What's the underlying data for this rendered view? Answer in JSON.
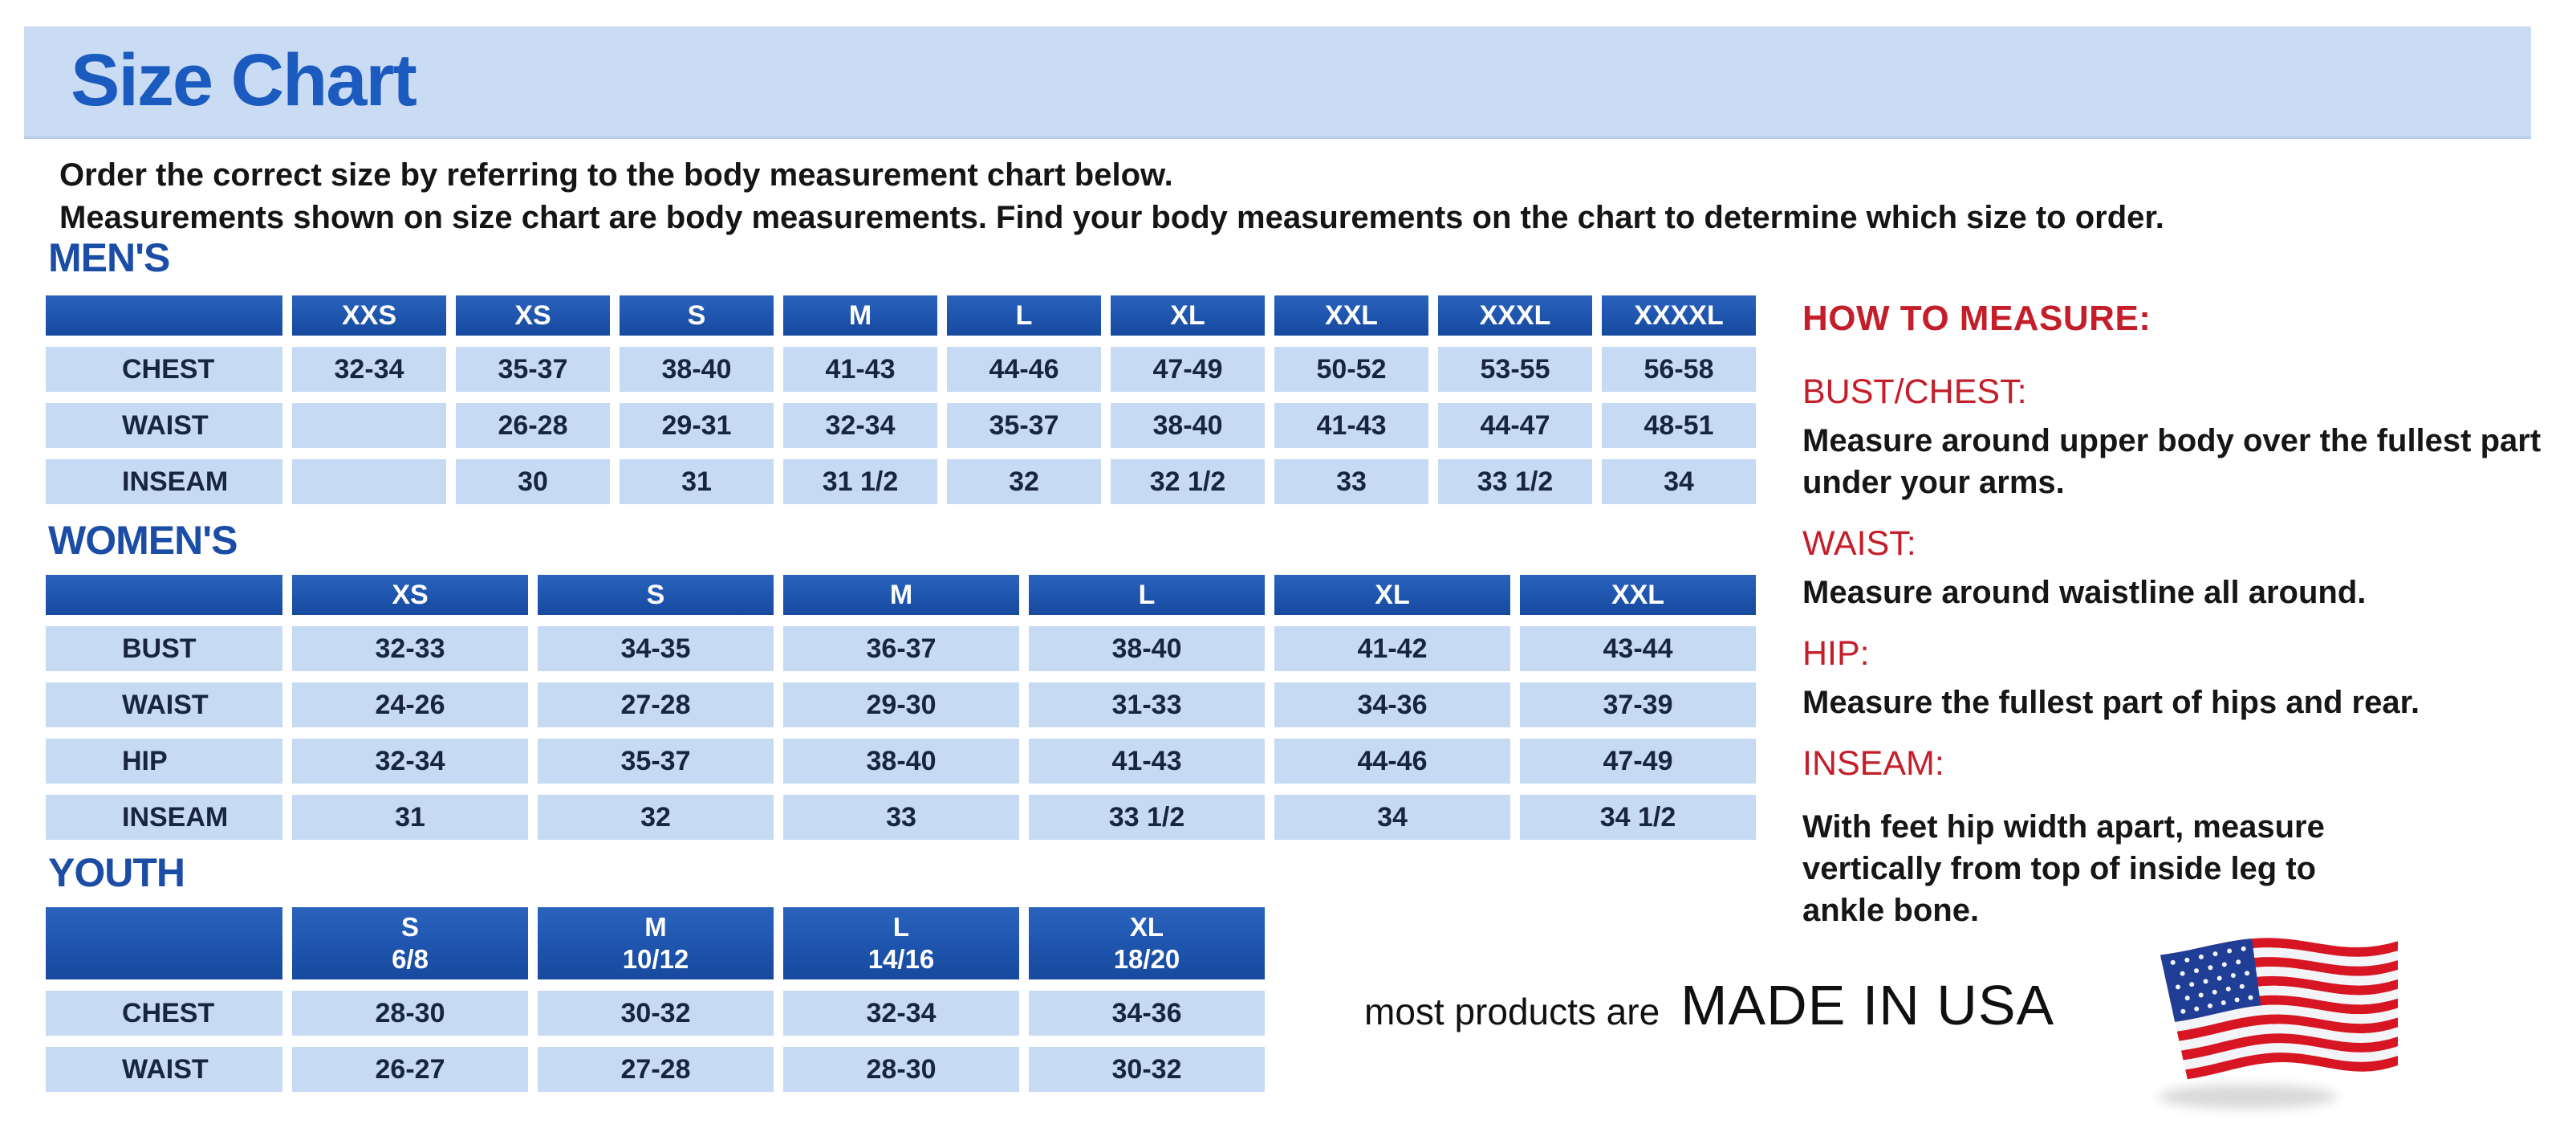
{
  "page": {
    "title": "Size Chart"
  },
  "intro": {
    "line1": "Order the correct size by referring to the body measurement chart below.",
    "line2": "Measurements shown on size chart are body measurements.  Find your body measurements on the chart to determine which size to order."
  },
  "tables": {
    "men": {
      "heading": "MEN'S",
      "columns": [
        "",
        "XXS",
        "XS",
        "S",
        "M",
        "L",
        "XL",
        "XXL",
        "XXXL",
        "XXXXL"
      ],
      "rows": [
        {
          "label": "CHEST",
          "values": [
            "32-34",
            "35-37",
            "38-40",
            "41-43",
            "44-46",
            "47-49",
            "50-52",
            "53-55",
            "56-58"
          ]
        },
        {
          "label": "WAIST",
          "values": [
            "",
            "26-28",
            "29-31",
            "32-34",
            "35-37",
            "38-40",
            "41-43",
            "44-47",
            "48-51"
          ]
        },
        {
          "label": "INSEAM",
          "values": [
            "",
            "30",
            "31",
            "31 1/2",
            "32",
            "32 1/2",
            "33",
            "33 1/2",
            "34"
          ]
        }
      ]
    },
    "women": {
      "heading": "WOMEN'S",
      "columns": [
        "",
        "XS",
        "S",
        "M",
        "L",
        "XL",
        "XXL"
      ],
      "rows": [
        {
          "label": "BUST",
          "values": [
            "32-33",
            "34-35",
            "36-37",
            "38-40",
            "41-42",
            "43-44"
          ]
        },
        {
          "label": "WAIST",
          "values": [
            "24-26",
            "27-28",
            "29-30",
            "31-33",
            "34-36",
            "37-39"
          ]
        },
        {
          "label": "HIP",
          "values": [
            "32-34",
            "35-37",
            "38-40",
            "41-43",
            "44-46",
            "47-49"
          ]
        },
        {
          "label": "INSEAM",
          "values": [
            "31",
            "32",
            "33",
            "33 1/2",
            "34",
            "34 1/2"
          ]
        }
      ]
    },
    "youth": {
      "heading": "YOUTH",
      "columns": [
        "",
        "S\n6/8",
        "M\n10/12",
        "L\n14/16",
        "XL\n18/20"
      ],
      "rows": [
        {
          "label": "CHEST",
          "values": [
            "28-30",
            "30-32",
            "32-34",
            "34-36"
          ]
        },
        {
          "label": "WAIST",
          "values": [
            "26-27",
            "27-28",
            "28-30",
            "30-32"
          ]
        }
      ]
    }
  },
  "measure": {
    "heading": "HOW TO MEASURE:",
    "items": [
      {
        "label": "BUST/CHEST:",
        "text": "Measure around upper body over the fullest part under your arms."
      },
      {
        "label": "WAIST:",
        "text": "Measure around waistline all around."
      },
      {
        "label": "HIP:",
        "text": "Measure the fullest part of hips and rear."
      },
      {
        "label": "INSEAM:",
        "text": "With feet hip width apart, measure vertically from top of inside leg to ankle bone."
      }
    ]
  },
  "footer": {
    "prefix": "most products are",
    "emphasis": "MADE IN USA",
    "flag_icon": "usa-flag-icon"
  },
  "colors": {
    "banner_bg": "#c9dcf3",
    "title_blue": "#1b5abe",
    "heading_blue": "#1c4da6",
    "table_header_blue": "#1e54ad",
    "cell_blue": "#c7daf3",
    "cell_text_navy": "#17253f",
    "accent_red": "#c41e2a",
    "flag_red": "#d81522",
    "flag_canton_blue": "#203e96"
  }
}
